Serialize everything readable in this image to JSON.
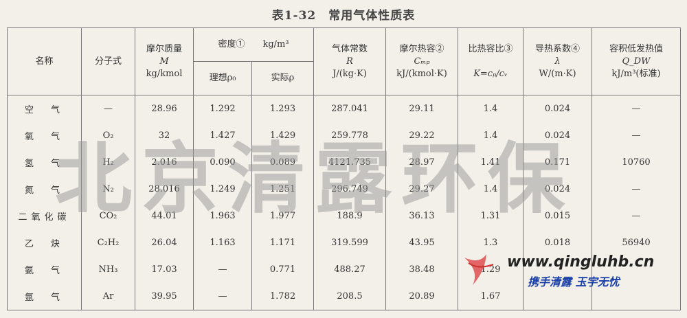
{
  "title": "表1-32　常用气体性质表",
  "table": {
    "header": {
      "name": "名称",
      "formula": "分子式",
      "molar_mass": [
        "摩尔质量",
        "M",
        "kg/kmol"
      ],
      "density": "密度①　　kg/m³",
      "density_ideal": "理想ρ₀",
      "density_actual": "实际ρ",
      "gas_constant": [
        "气体常数",
        "R",
        "J/(kg·K)"
      ],
      "molar_heat": [
        "摩尔热容②",
        "Cₘₚ",
        "kJ/(kmol·K)"
      ],
      "heat_ratio": [
        "比热容比③",
        "K=cₚ/cᵥ"
      ],
      "conductivity": [
        "导热系数④",
        "λ",
        "W/(m·K)"
      ],
      "heating_value": [
        "容积低发热值",
        "Q_DW",
        "kJ/m³(标准)"
      ]
    },
    "rows": [
      [
        "空　气",
        "—",
        "28.96",
        "1.292",
        "1.293",
        "287.041",
        "29.11",
        "1.4",
        "0.024",
        "—"
      ],
      [
        "氧　气",
        "O₂",
        "32",
        "1.427",
        "1.429",
        "259.778",
        "29.22",
        "1.4",
        "0.024",
        "—"
      ],
      [
        "氢　气",
        "H₂",
        "2.016",
        "0.090",
        "0.089",
        "4121.735",
        "28.97",
        "1.41",
        "0.171",
        "10760"
      ],
      [
        "氮　气",
        "N₂",
        "28.016",
        "1.249",
        "1.251",
        "296.749",
        "29.27",
        "1.4",
        "0.024",
        "—"
      ],
      [
        "二氧化碳",
        "CO₂",
        "44.01",
        "1.963",
        "1.977",
        "188.9",
        "36.13",
        "1.31",
        "0.015",
        "—"
      ],
      [
        "乙　炔",
        "C₂H₂",
        "26.04",
        "1.163",
        "1.171",
        "319.599",
        "43.95",
        "1.3",
        "0.018",
        "56940"
      ],
      [
        "氨　气",
        "NH₃",
        "17.03",
        "—",
        "0.771",
        "488.27",
        "38.48",
        "1.29",
        null,
        null
      ],
      [
        "氩　气",
        "Ar",
        "39.95",
        "—",
        "1.782",
        "208.5",
        "20.89",
        "1.67",
        null,
        null
      ]
    ]
  },
  "watermark": {
    "text": "北京清露环保",
    "url": "www.qingluhb.cn",
    "slogan": "携手清露 玉宇无忧"
  }
}
